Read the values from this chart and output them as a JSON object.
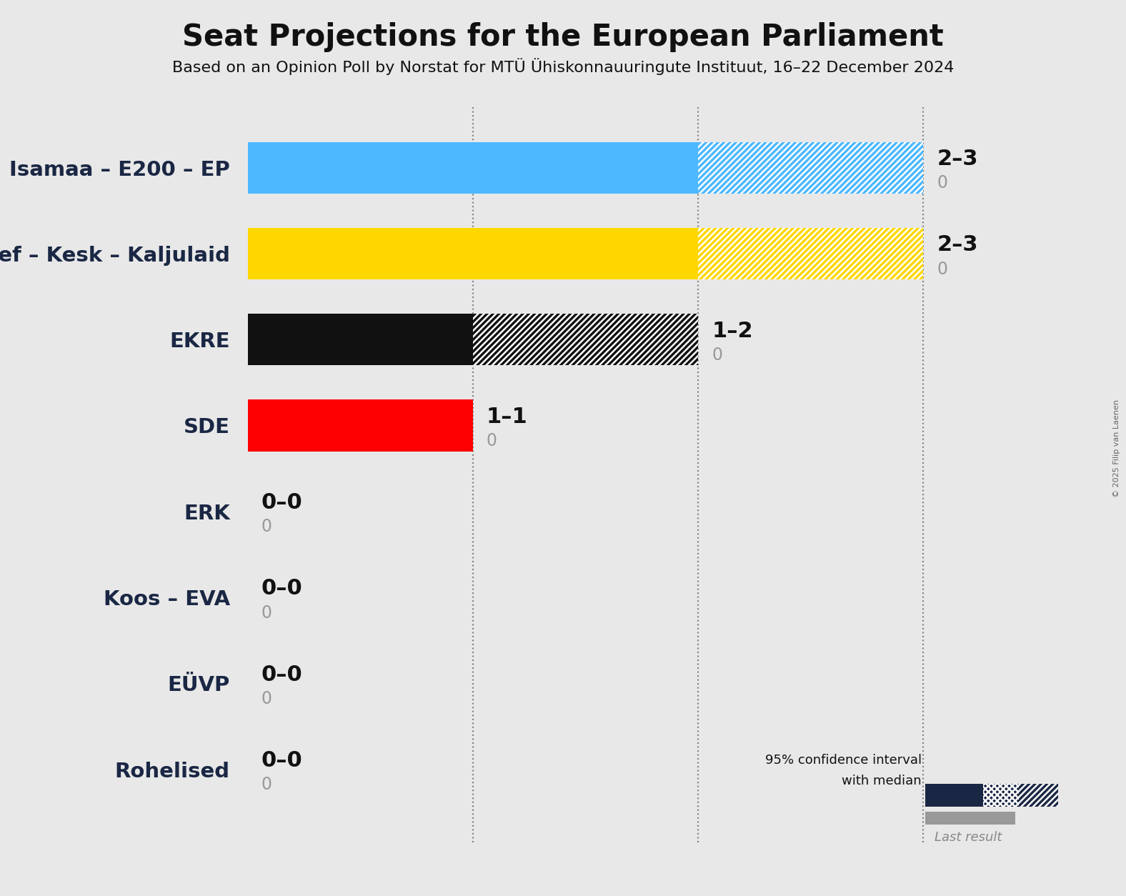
{
  "title": "Seat Projections for the European Parliament",
  "subtitle": "Based on an Opinion Poll by Norstat for MTÜ Ühiskonnauuringute Instituut, 16–22 December 2024",
  "copyright": "© 2025 Filip van Laenen",
  "background_color": "#e8e8e8",
  "parties": [
    {
      "name": "Isamaa – E200 – EP",
      "median": 2,
      "low": 2,
      "high": 3,
      "last": 0,
      "color": "#4db8ff"
    },
    {
      "name": "Ref – Kesk – Kaljulaid",
      "median": 2,
      "low": 2,
      "high": 3,
      "last": 0,
      "color": "#FFD700"
    },
    {
      "name": "EKRE",
      "median": 1,
      "low": 1,
      "high": 2,
      "last": 0,
      "color": "#111111"
    },
    {
      "name": "SDE",
      "median": 1,
      "low": 1,
      "high": 1,
      "last": 0,
      "color": "#FF0000"
    },
    {
      "name": "ERK",
      "median": 0,
      "low": 0,
      "high": 0,
      "last": 0,
      "color": "#888888"
    },
    {
      "name": "Koos – EVA",
      "median": 0,
      "low": 0,
      "high": 0,
      "last": 0,
      "color": "#888888"
    },
    {
      "name": "EÜVP",
      "median": 0,
      "low": 0,
      "high": 0,
      "last": 0,
      "color": "#888888"
    },
    {
      "name": "Rohelised",
      "median": 0,
      "low": 0,
      "high": 0,
      "last": 0,
      "color": "#888888"
    }
  ],
  "xlim": [
    0,
    3.5
  ],
  "gridlines": [
    1,
    2,
    3
  ],
  "legend_dark_color": "#1a2744",
  "last_result_color": "#999999",
  "bar_height": 0.6
}
